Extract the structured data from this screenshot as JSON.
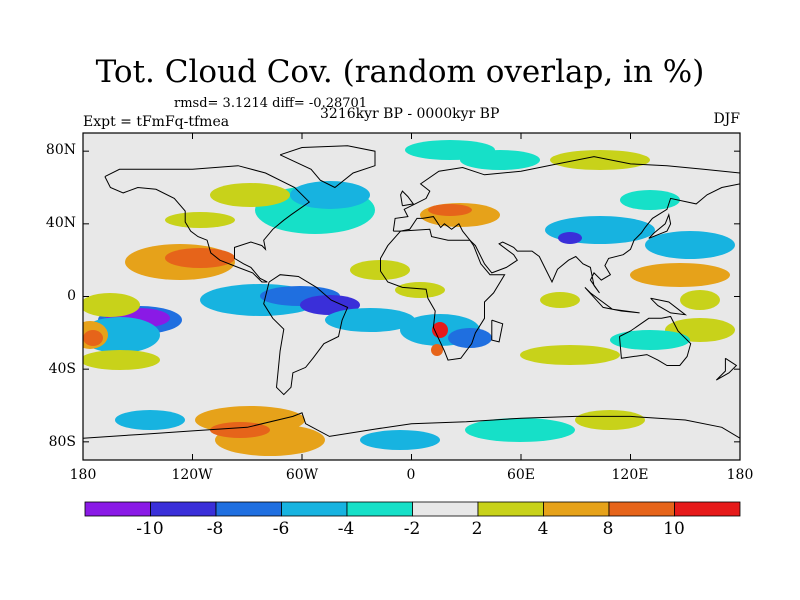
{
  "title": "Tot. Cloud Cov. (random overlap, in %)",
  "stats": "rmsd= 3.1214 diff= -0.28701",
  "experiment": "Expt = tFmFq-tfmea",
  "period": "3216kyr BP - 0000kyr BP",
  "season": "DJF",
  "map": {
    "lon_range": [
      -180,
      180
    ],
    "lat_range": [
      -90,
      90
    ],
    "x_tick_labels": [
      "180",
      "120W",
      "60W",
      "0",
      "60E",
      "120E",
      "180"
    ],
    "y_tick_labels": [
      "80N",
      "40N",
      "0",
      "40S",
      "80S"
    ]
  },
  "colorbar": {
    "labels": [
      "-10",
      "-8",
      "-6",
      "-4",
      "-2",
      "2",
      "4",
      "8",
      "10"
    ],
    "colors": [
      "#8a1ae6",
      "#3a2fd9",
      "#1f6fe0",
      "#17b3e0",
      "#16e0c8",
      "#e8e8e8",
      "#c8d21a",
      "#e6a21a",
      "#e6641a",
      "#e61a1a"
    ]
  },
  "colors": {
    "land_outline": "#000000",
    "background": "#e8e8e8"
  }
}
